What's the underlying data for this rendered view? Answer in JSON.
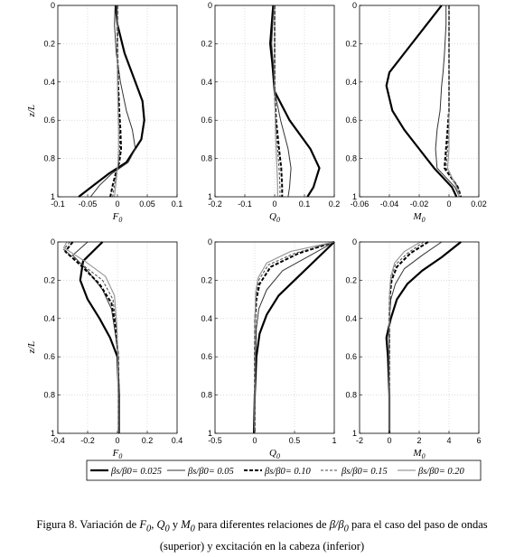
{
  "caption": {
    "prefix": "Figura 8. Variación de ",
    "v1": "F",
    "v1sub": "0",
    "sep1": ", ",
    "v2": "Q",
    "v2sub": "0",
    "sep2": " y ",
    "v3": "M",
    "v3sub": "0",
    "mid": "  para diferentes relaciones de ",
    "ratio": "β/β",
    "ratio_sub": "0",
    "suffix": " para el caso del paso de ondas",
    "line2": "(superior) y excitación en la cabeza (inferior)"
  },
  "legend": {
    "entries": [
      {
        "label": "βs/β0= 0.025",
        "color": "#000000",
        "width": 2.2,
        "dash": ""
      },
      {
        "label": "βs/β0= 0.05",
        "color": "#333333",
        "width": 1.0,
        "dash": ""
      },
      {
        "label": "βs/β0= 0.10",
        "color": "#000000",
        "width": 2.0,
        "dash": "4,2"
      },
      {
        "label": "βs/β0= 0.15",
        "color": "#444444",
        "width": 1.0,
        "dash": "3,2"
      },
      {
        "label": "βs/β0= 0.20",
        "color": "#999999",
        "width": 1.2,
        "dash": ""
      }
    ]
  },
  "chart_data": [
    {
      "type": "line",
      "panel": "upper-F0",
      "xlabel": "F",
      "xlabel_sub": "0",
      "ylabel": "z/L",
      "xlim": [
        -0.1,
        0.1
      ],
      "ylim": [
        0,
        1
      ],
      "xticks": [
        -0.1,
        -0.05,
        0,
        0.05,
        0.1
      ],
      "xtick_labels": [
        "-0.1",
        "-0.05",
        "0",
        "0.05",
        "0.1"
      ],
      "yticks": [
        0,
        0.2,
        0.4,
        0.6,
        0.8,
        1
      ],
      "ytick_labels": [
        "0",
        "0.2",
        "0.4",
        "0.6",
        "0.8",
        "1"
      ],
      "series": [
        {
          "x": [
            -0.003,
            0.0,
            0.012,
            0.03,
            0.042,
            0.045,
            0.04,
            0.015,
            -0.015,
            -0.04,
            -0.065
          ],
          "y": [
            0,
            0.1,
            0.25,
            0.4,
            0.5,
            0.6,
            0.7,
            0.82,
            0.88,
            0.94,
            1.0
          ]
        },
        {
          "x": [
            -0.004,
            -0.005,
            -0.002,
            0.005,
            0.015,
            0.025,
            0.03,
            0.018,
            -0.01,
            -0.03,
            -0.045
          ],
          "y": [
            0,
            0.1,
            0.25,
            0.4,
            0.55,
            0.65,
            0.75,
            0.82,
            0.88,
            0.94,
            1.0
          ]
        },
        {
          "x": [
            0.0,
            0.0,
            0.0,
            0.001,
            0.003,
            0.005,
            0.006,
            0.003,
            -0.003,
            -0.008,
            -0.012
          ],
          "y": [
            0,
            0.1,
            0.25,
            0.4,
            0.55,
            0.65,
            0.75,
            0.82,
            0.88,
            0.94,
            1.0
          ]
        },
        {
          "x": [
            0.0,
            0.0,
            0.0,
            0.001,
            0.002,
            0.003,
            0.004,
            0.002,
            -0.002,
            -0.005,
            -0.008
          ],
          "y": [
            0,
            0.1,
            0.25,
            0.4,
            0.55,
            0.65,
            0.75,
            0.82,
            0.88,
            0.94,
            1.0
          ]
        },
        {
          "x": [
            0.0,
            0.0,
            0.0,
            0.0,
            0.001,
            0.002,
            0.002,
            0.001,
            -0.001,
            -0.003,
            -0.005
          ],
          "y": [
            0,
            0.1,
            0.25,
            0.4,
            0.55,
            0.65,
            0.75,
            0.82,
            0.88,
            0.94,
            1.0
          ]
        }
      ]
    },
    {
      "type": "line",
      "panel": "upper-Q0",
      "xlabel": "Q",
      "xlabel_sub": "0",
      "ylabel": "",
      "xlim": [
        -0.2,
        0.2
      ],
      "ylim": [
        0,
        1
      ],
      "xticks": [
        -0.2,
        -0.1,
        0,
        0.1,
        0.2
      ],
      "xtick_labels": [
        "-0.2",
        "-0.1",
        "0",
        "0.1",
        "0.2"
      ],
      "yticks": [
        0,
        0.2,
        0.4,
        0.6,
        0.8,
        1
      ],
      "ytick_labels": [
        "0",
        "0.2",
        "0.4",
        "0.6",
        "0.8",
        "1"
      ],
      "series": [
        {
          "x": [
            -0.005,
            -0.015,
            -0.008,
            0.0,
            0.05,
            0.12,
            0.15,
            0.13,
            0.11
          ],
          "y": [
            0,
            0.2,
            0.3,
            0.45,
            0.6,
            0.75,
            0.85,
            0.95,
            1.0
          ]
        },
        {
          "x": [
            -0.003,
            -0.01,
            -0.005,
            0.0,
            0.02,
            0.045,
            0.055,
            0.05,
            0.045
          ],
          "y": [
            0,
            0.2,
            0.3,
            0.45,
            0.6,
            0.75,
            0.85,
            0.95,
            1.0
          ]
        },
        {
          "x": [
            0.0,
            0.0,
            0.0,
            0.0,
            0.005,
            0.015,
            0.022,
            0.025,
            0.025
          ],
          "y": [
            0,
            0.2,
            0.3,
            0.45,
            0.6,
            0.75,
            0.85,
            0.95,
            1.0
          ]
        },
        {
          "x": [
            0.0,
            0.0,
            0.0,
            0.0,
            0.003,
            0.01,
            0.015,
            0.018,
            0.018
          ],
          "y": [
            0,
            0.2,
            0.3,
            0.45,
            0.6,
            0.75,
            0.85,
            0.95,
            1.0
          ]
        },
        {
          "x": [
            0.0,
            0.0,
            0.0,
            0.0,
            0.002,
            0.005,
            0.008,
            0.01,
            0.01
          ],
          "y": [
            0,
            0.2,
            0.3,
            0.45,
            0.6,
            0.75,
            0.85,
            0.95,
            1.0
          ]
        }
      ]
    },
    {
      "type": "line",
      "panel": "upper-M0",
      "xlabel": "M",
      "xlabel_sub": "0",
      "ylabel": "",
      "xlim": [
        -0.06,
        0.02
      ],
      "ylim": [
        0,
        1
      ],
      "xticks": [
        -0.06,
        -0.04,
        -0.02,
        0,
        0.02
      ],
      "xtick_labels": [
        "-0.06",
        "-0.04",
        "-0.02",
        "0",
        "0.02"
      ],
      "yticks": [
        0,
        0.2,
        0.4,
        0.6,
        0.8,
        1
      ],
      "ytick_labels": [
        "0",
        "0.2",
        "0.4",
        "0.6",
        "0.8",
        "1"
      ],
      "series": [
        {
          "x": [
            -0.005,
            -0.015,
            -0.03,
            -0.04,
            -0.042,
            -0.038,
            -0.03,
            -0.02,
            -0.01,
            0.002,
            0.005
          ],
          "y": [
            0,
            0.1,
            0.25,
            0.35,
            0.42,
            0.55,
            0.65,
            0.75,
            0.85,
            0.95,
            1.0
          ]
        },
        {
          "x": [
            -0.002,
            -0.002,
            -0.003,
            -0.004,
            -0.005,
            -0.006,
            -0.008,
            -0.009,
            -0.008,
            0.004,
            0.007
          ],
          "y": [
            0,
            0.1,
            0.25,
            0.35,
            0.42,
            0.55,
            0.65,
            0.75,
            0.85,
            0.95,
            1.0
          ]
        },
        {
          "x": [
            0.0,
            0.0,
            0.0,
            0.0,
            0.0,
            0.0,
            -0.001,
            -0.002,
            -0.003,
            0.006,
            0.008
          ],
          "y": [
            0,
            0.1,
            0.25,
            0.35,
            0.42,
            0.55,
            0.65,
            0.75,
            0.85,
            0.95,
            1.0
          ]
        },
        {
          "x": [
            0.0,
            0.0,
            0.0,
            0.0,
            0.0,
            0.0,
            0.0,
            -0.001,
            -0.002,
            0.006,
            0.008
          ],
          "y": [
            0,
            0.1,
            0.25,
            0.35,
            0.42,
            0.55,
            0.65,
            0.75,
            0.85,
            0.95,
            1.0
          ]
        },
        {
          "x": [
            0.0,
            0.0,
            0.0,
            0.0,
            0.0,
            0.0,
            0.0,
            0.0,
            -0.001,
            0.005,
            0.007
          ],
          "y": [
            0,
            0.1,
            0.25,
            0.35,
            0.42,
            0.55,
            0.65,
            0.75,
            0.85,
            0.95,
            1.0
          ]
        }
      ]
    },
    {
      "type": "line",
      "panel": "lower-F0",
      "xlabel": "F",
      "xlabel_sub": "0",
      "ylabel": "z/L",
      "xlim": [
        -0.4,
        0.4
      ],
      "ylim": [
        0,
        1
      ],
      "xticks": [
        -0.4,
        -0.2,
        0,
        0.2,
        0.4
      ],
      "xtick_labels": [
        "-0.4",
        "-0.2",
        "0",
        "0.2",
        "0.4"
      ],
      "yticks": [
        0,
        0.2,
        0.4,
        0.6,
        0.8,
        1
      ],
      "ytick_labels": [
        "0",
        "0.2",
        "0.4",
        "0.6",
        "0.8",
        "1"
      ],
      "series": [
        {
          "x": [
            -0.1,
            -0.23,
            -0.25,
            -0.2,
            -0.12,
            -0.05,
            0.0,
            0.01,
            0.01
          ],
          "y": [
            0,
            0.1,
            0.2,
            0.3,
            0.4,
            0.5,
            0.6,
            0.8,
            1.0
          ]
        },
        {
          "x": [
            -0.2,
            -0.3,
            -0.2,
            -0.1,
            -0.04,
            -0.01,
            0.005,
            0.008,
            0.008
          ],
          "y": [
            0,
            0.07,
            0.15,
            0.25,
            0.35,
            0.5,
            0.6,
            0.8,
            1.0
          ]
        },
        {
          "x": [
            -0.3,
            -0.35,
            -0.25,
            -0.12,
            -0.04,
            -0.01,
            0.005,
            0.008,
            0.008
          ],
          "y": [
            0,
            0.05,
            0.12,
            0.22,
            0.32,
            0.45,
            0.6,
            0.8,
            1.0
          ]
        },
        {
          "x": [
            -0.32,
            -0.36,
            -0.25,
            -0.1,
            -0.03,
            -0.005,
            0.004,
            0.006,
            0.006
          ],
          "y": [
            0,
            0.04,
            0.11,
            0.2,
            0.3,
            0.45,
            0.6,
            0.8,
            1.0
          ]
        },
        {
          "x": [
            -0.34,
            -0.36,
            -0.22,
            -0.08,
            -0.02,
            -0.003,
            0.003,
            0.005,
            0.005
          ],
          "y": [
            0,
            0.03,
            0.1,
            0.18,
            0.28,
            0.45,
            0.6,
            0.8,
            1.0
          ]
        }
      ]
    },
    {
      "type": "line",
      "panel": "lower-Q0",
      "xlabel": "Q",
      "xlabel_sub": "0",
      "ylabel": "",
      "xlim": [
        -0.5,
        1
      ],
      "ylim": [
        0,
        1
      ],
      "xticks": [
        -0.5,
        0,
        0.5,
        1
      ],
      "xtick_labels": [
        "-0.5",
        "0",
        "0.5",
        "1"
      ],
      "yticks": [
        0,
        0.2,
        0.4,
        0.6,
        0.8,
        1
      ],
      "ytick_labels": [
        "0",
        "0.2",
        "0.4",
        "0.6",
        "0.8",
        "1"
      ],
      "series": [
        {
          "x": [
            1.0,
            0.8,
            0.55,
            0.3,
            0.15,
            0.06,
            0.02,
            0.0,
            -0.01
          ],
          "y": [
            0,
            0.08,
            0.18,
            0.28,
            0.38,
            0.48,
            0.6,
            0.8,
            1.0
          ]
        },
        {
          "x": [
            1.0,
            0.7,
            0.35,
            0.15,
            0.05,
            0.02,
            0.01,
            0.0,
            0.0
          ],
          "y": [
            0,
            0.07,
            0.15,
            0.25,
            0.35,
            0.45,
            0.6,
            0.8,
            1.0
          ]
        },
        {
          "x": [
            1.0,
            0.55,
            0.2,
            0.06,
            0.02,
            0.005,
            0.0,
            0.0,
            0.0
          ],
          "y": [
            0,
            0.06,
            0.13,
            0.22,
            0.3,
            0.4,
            0.6,
            0.8,
            1.0
          ]
        },
        {
          "x": [
            1.0,
            0.5,
            0.17,
            0.05,
            0.015,
            0.004,
            0.0,
            0.0,
            0.0
          ],
          "y": [
            0,
            0.06,
            0.12,
            0.2,
            0.28,
            0.4,
            0.6,
            0.8,
            1.0
          ]
        },
        {
          "x": [
            1.0,
            0.45,
            0.15,
            0.04,
            0.01,
            0.003,
            0.0,
            0.0,
            0.0
          ],
          "y": [
            0,
            0.05,
            0.11,
            0.19,
            0.27,
            0.4,
            0.6,
            0.8,
            1.0
          ]
        }
      ]
    },
    {
      "type": "line",
      "panel": "lower-M0",
      "xlabel": "M",
      "xlabel_sub": "0",
      "ylabel": "",
      "xlim": [
        -2,
        6
      ],
      "ylim": [
        0,
        1
      ],
      "xticks": [
        -2,
        0,
        2,
        4,
        6
      ],
      "xtick_labels": [
        "-2",
        "0",
        "2",
        "4",
        "6"
      ],
      "yticks": [
        0,
        0.2,
        0.4,
        0.6,
        0.8,
        1
      ],
      "ytick_labels": [
        "0",
        "0.2",
        "0.4",
        "0.6",
        "0.8",
        "1"
      ],
      "series": [
        {
          "x": [
            4.8,
            3.5,
            2.2,
            1.2,
            0.5,
            0.1,
            -0.2,
            -0.1,
            0.0,
            0.0
          ],
          "y": [
            0,
            0.08,
            0.15,
            0.22,
            0.3,
            0.4,
            0.5,
            0.6,
            0.8,
            1.0
          ]
        },
        {
          "x": [
            3.5,
            2.2,
            1.0,
            0.4,
            0.1,
            0.0,
            -0.05,
            0.0,
            0.0,
            0.0
          ],
          "y": [
            0,
            0.07,
            0.14,
            0.22,
            0.3,
            0.4,
            0.5,
            0.6,
            0.8,
            1.0
          ]
        },
        {
          "x": [
            2.6,
            1.4,
            0.5,
            0.15,
            0.03,
            0.0,
            0.0,
            0.0,
            0.0,
            0.0
          ],
          "y": [
            0,
            0.06,
            0.13,
            0.2,
            0.28,
            0.4,
            0.5,
            0.6,
            0.8,
            1.0
          ]
        },
        {
          "x": [
            2.3,
            1.2,
            0.4,
            0.12,
            0.02,
            0.0,
            0.0,
            0.0,
            0.0,
            0.0
          ],
          "y": [
            0,
            0.06,
            0.12,
            0.19,
            0.27,
            0.4,
            0.5,
            0.6,
            0.8,
            1.0
          ]
        },
        {
          "x": [
            2.1,
            1.0,
            0.35,
            0.1,
            0.02,
            0.0,
            0.0,
            0.0,
            0.0,
            0.0
          ],
          "y": [
            0,
            0.05,
            0.11,
            0.18,
            0.26,
            0.4,
            0.5,
            0.6,
            0.8,
            1.0
          ]
        }
      ]
    }
  ]
}
